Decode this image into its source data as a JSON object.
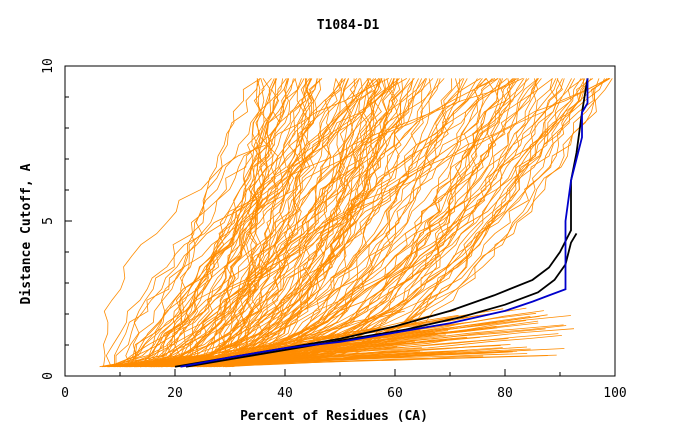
{
  "chart_data": {
    "type": "line",
    "title": "T1084-D1",
    "xlabel": "Percent of Residues (CA)",
    "ylabel": "Distance Cutoff, A",
    "xlim": [
      0,
      100
    ],
    "ylim": [
      0,
      10
    ],
    "x_ticks": [
      "0",
      "20",
      "40",
      "60",
      "80",
      "100"
    ],
    "y_ticks": [
      "0",
      "5",
      "10"
    ],
    "grid": false,
    "colors": {
      "bundle": "#ff8c00",
      "highlight_black": "#000000",
      "highlight_blue": "#0000cc",
      "axis": "#000000"
    },
    "series": [
      {
        "color": "#000000",
        "x": [
          20,
          30,
          40,
          50,
          60,
          70,
          78,
          85,
          88,
          90,
          92,
          92,
          93,
          94,
          95
        ],
        "y": [
          0.3,
          0.6,
          0.9,
          1.2,
          1.6,
          2.1,
          2.6,
          3.1,
          3.5,
          4.0,
          4.7,
          6.3,
          7.2,
          8.5,
          9.6
        ]
      },
      {
        "color": "#000000",
        "x": [
          22,
          32,
          42,
          52,
          62,
          72,
          80,
          86,
          89,
          91,
          92,
          93
        ],
        "y": [
          0.3,
          0.6,
          0.9,
          1.2,
          1.5,
          1.9,
          2.3,
          2.7,
          3.1,
          3.6,
          4.3,
          4.6
        ]
      },
      {
        "color": "#0000cc",
        "x": [
          21,
          30,
          40,
          50,
          60,
          70,
          80,
          85,
          88,
          91,
          91,
          92,
          93,
          94,
          94,
          95,
          95
        ],
        "y": [
          0.3,
          0.6,
          0.9,
          1.1,
          1.4,
          1.7,
          2.1,
          2.4,
          2.6,
          2.8,
          5.0,
          6.3,
          7.0,
          7.7,
          8.5,
          8.8,
          9.6
        ]
      }
    ]
  }
}
